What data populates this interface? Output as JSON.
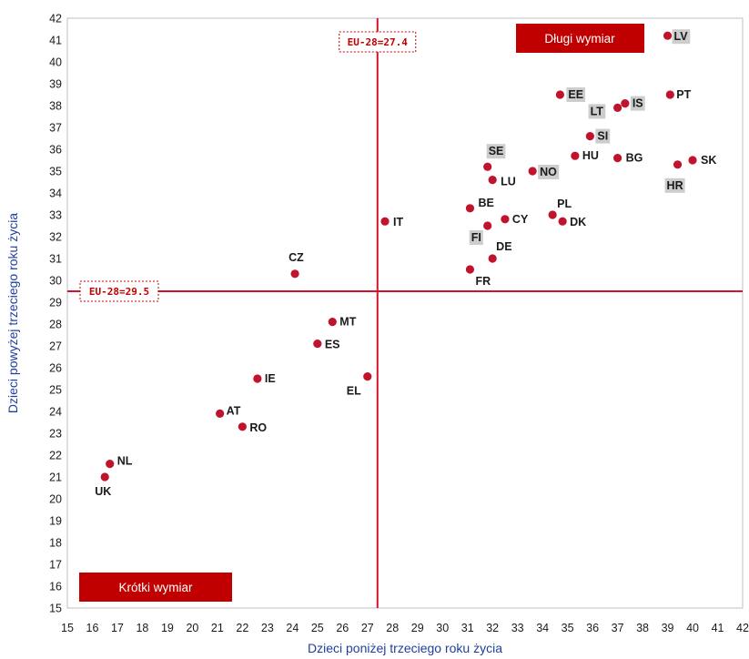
{
  "chart_data": {
    "type": "scatter",
    "xlabel": "Dzieci poniżej trzeciego roku życia",
    "ylabel": "Dzieci powyżej trzeciego roku życia",
    "xlim": [
      15,
      42
    ],
    "ylim": [
      15,
      42
    ],
    "x_ticks": [
      15,
      16,
      17,
      18,
      19,
      20,
      21,
      22,
      23,
      24,
      25,
      26,
      27,
      28,
      29,
      30,
      31,
      32,
      33,
      34,
      35,
      36,
      37,
      38,
      39,
      40,
      41,
      42
    ],
    "y_ticks": [
      15,
      16,
      17,
      18,
      19,
      20,
      21,
      22,
      23,
      24,
      25,
      26,
      27,
      28,
      29,
      30,
      31,
      32,
      33,
      34,
      35,
      36,
      37,
      38,
      39,
      40,
      41,
      42
    ],
    "grid": false,
    "point_color": "#c0132c",
    "line_color": "#d0142c",
    "reference_lines": {
      "vertical": {
        "value": 27.4,
        "label": "EU-28=27.4"
      },
      "horizontal": {
        "value": 29.5,
        "label": "EU-28=29.5"
      }
    },
    "quadrant_labels": {
      "top_right": "Długi wymiar",
      "bottom_left": "Krótki wymiar"
    },
    "points": [
      {
        "label": "LV",
        "x": 39.0,
        "y": 41.2,
        "highlighted": true
      },
      {
        "label": "EE",
        "x": 34.7,
        "y": 38.5,
        "highlighted": true
      },
      {
        "label": "LT",
        "x": 37.0,
        "y": 37.9,
        "highlighted": true
      },
      {
        "label": "IS",
        "x": 37.3,
        "y": 38.1,
        "highlighted": true
      },
      {
        "label": "PT",
        "x": 39.1,
        "y": 38.5,
        "highlighted": false
      },
      {
        "label": "SI",
        "x": 35.9,
        "y": 36.6,
        "highlighted": true
      },
      {
        "label": "HU",
        "x": 35.3,
        "y": 35.7,
        "highlighted": false
      },
      {
        "label": "BG",
        "x": 37.0,
        "y": 35.6,
        "highlighted": false
      },
      {
        "label": "SE",
        "x": 31.8,
        "y": 35.2,
        "highlighted": true
      },
      {
        "label": "NO",
        "x": 33.6,
        "y": 35.0,
        "highlighted": true
      },
      {
        "label": "LU",
        "x": 32.0,
        "y": 34.6,
        "highlighted": false
      },
      {
        "label": "SK",
        "x": 40.0,
        "y": 35.5,
        "highlighted": false
      },
      {
        "label": "HR",
        "x": 39.4,
        "y": 35.3,
        "highlighted": true
      },
      {
        "label": "BE",
        "x": 31.1,
        "y": 33.3,
        "highlighted": false
      },
      {
        "label": "PL",
        "x": 34.4,
        "y": 33.0,
        "highlighted": false
      },
      {
        "label": "DK",
        "x": 34.8,
        "y": 32.7,
        "highlighted": false
      },
      {
        "label": "CY",
        "x": 32.5,
        "y": 32.8,
        "highlighted": false
      },
      {
        "label": "FI",
        "x": 31.8,
        "y": 32.5,
        "highlighted": true
      },
      {
        "label": "IT",
        "x": 27.7,
        "y": 32.7,
        "highlighted": false
      },
      {
        "label": "DE",
        "x": 32.0,
        "y": 31.0,
        "highlighted": false
      },
      {
        "label": "FR",
        "x": 31.1,
        "y": 30.5,
        "highlighted": false
      },
      {
        "label": "CZ",
        "x": 24.1,
        "y": 30.3,
        "highlighted": false
      },
      {
        "label": "MT",
        "x": 25.6,
        "y": 28.1,
        "highlighted": false
      },
      {
        "label": "ES",
        "x": 25.0,
        "y": 27.1,
        "highlighted": false
      },
      {
        "label": "IE",
        "x": 22.6,
        "y": 25.5,
        "highlighted": false
      },
      {
        "label": "EL",
        "x": 27.0,
        "y": 25.6,
        "highlighted": false
      },
      {
        "label": "AT",
        "x": 21.1,
        "y": 23.9,
        "highlighted": false
      },
      {
        "label": "RO",
        "x": 22.0,
        "y": 23.3,
        "highlighted": false
      },
      {
        "label": "NL",
        "x": 16.7,
        "y": 21.6,
        "highlighted": false
      },
      {
        "label": "UK",
        "x": 16.5,
        "y": 21.0,
        "highlighted": false
      }
    ]
  }
}
